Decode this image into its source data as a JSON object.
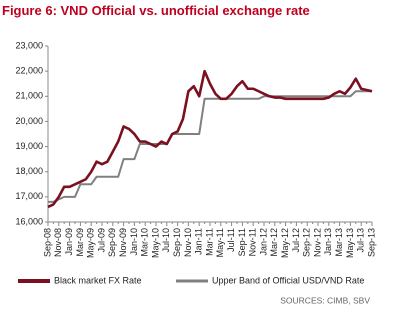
{
  "chart_data": {
    "type": "line",
    "title": "Figure 6: VND Official vs. unofficial exchange rate",
    "source": "SOURCES: CIMB, SBV",
    "x": [
      "Sep-08",
      null,
      "Nov-08",
      null,
      "Jan-09",
      null,
      "Mar-09",
      null,
      "May-09",
      null,
      "Jul-09",
      null,
      "Sep-09",
      null,
      "Nov-09",
      null,
      "Jan-10",
      null,
      "Mar-10",
      null,
      "May-10",
      null,
      "Jul-10",
      null,
      "Sep-10",
      null,
      "Nov-10",
      null,
      "Jan-11",
      null,
      "Mar-11",
      null,
      "May-11",
      null,
      "Jul-11",
      null,
      "Sep-11",
      null,
      "Nov-11",
      null,
      "Jan-12",
      null,
      "Mar-12",
      null,
      "May-12",
      null,
      "Jul-12",
      null,
      "Sep-12",
      null,
      "Nov-12",
      null,
      "Jan-13",
      null,
      "Mar-13",
      null,
      "May-13",
      null,
      "Jul-13",
      null,
      "Sep-13"
    ],
    "series": [
      {
        "name": "Black market FX Rate",
        "color": "#7b1020",
        "values": [
          16600,
          16700,
          17000,
          17400,
          17400,
          17500,
          17600,
          17700,
          18000,
          18400,
          18300,
          18400,
          18800,
          19200,
          19800,
          19700,
          19500,
          19200,
          19200,
          19100,
          19000,
          19200,
          19100,
          19500,
          19600,
          20100,
          21200,
          21400,
          21000,
          22000,
          21500,
          21100,
          20900,
          20900,
          21100,
          21400,
          21600,
          21300,
          21300,
          21200,
          21100,
          21000,
          20950,
          20950,
          20900,
          20900,
          20900,
          20900,
          20900,
          20900,
          20900,
          20900,
          20950,
          21100,
          21200,
          21100,
          21350,
          21700,
          21300,
          21250,
          21200
        ]
      },
      {
        "name": "Upper Band of Official USD/VND Rate",
        "color": "#808080",
        "values": [
          16800,
          16800,
          16900,
          17000,
          17000,
          17000,
          17500,
          17500,
          17500,
          17800,
          17800,
          17800,
          17800,
          17800,
          18500,
          18500,
          18500,
          19100,
          19100,
          19100,
          19100,
          19100,
          19100,
          19500,
          19500,
          19500,
          19500,
          19500,
          19500,
          20900,
          20900,
          20900,
          20900,
          20900,
          20900,
          20900,
          20900,
          20900,
          20900,
          20900,
          21000,
          21000,
          21000,
          21000,
          21000,
          21000,
          21000,
          21000,
          21000,
          21000,
          21000,
          21000,
          21000,
          21000,
          21000,
          21000,
          21000,
          21200,
          21200,
          21200,
          21200
        ]
      }
    ],
    "ylim": [
      16000,
      23000
    ],
    "yticks": [
      {
        "value": 16000,
        "label": "16,000"
      },
      {
        "value": 17000,
        "label": "17,000"
      },
      {
        "value": 18000,
        "label": "18,000"
      },
      {
        "value": 19000,
        "label": "19,000"
      },
      {
        "value": 20000,
        "label": "20,000"
      },
      {
        "value": 21000,
        "label": "21,000"
      },
      {
        "value": 22000,
        "label": "22,000"
      },
      {
        "value": 23000,
        "label": "23,000"
      }
    ],
    "grid": false,
    "legend": "bottom"
  }
}
